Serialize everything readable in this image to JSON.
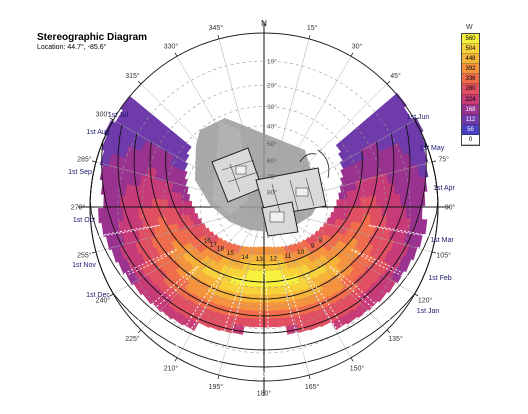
{
  "header": {
    "title": "Stereographic Diagram",
    "location": "Location: 44.7°, -85.6°"
  },
  "legend": {
    "unit": "W",
    "levels": [
      {
        "label": "560",
        "color": "#f7f03c"
      },
      {
        "label": "504",
        "color": "#f7d23a"
      },
      {
        "label": "448",
        "color": "#f6b33a"
      },
      {
        "label": "392",
        "color": "#f4923e"
      },
      {
        "label": "336",
        "color": "#ef6c4c"
      },
      {
        "label": "280",
        "color": "#e04f62"
      },
      {
        "label": "224",
        "color": "#c63b78"
      },
      {
        "label": "168",
        "color": "#9a3390"
      },
      {
        "label": "112",
        "color": "#6f3aaa"
      },
      {
        "label": "56",
        "color": "#4a40c2"
      },
      {
        "label": "0",
        "color": "#ffffff"
      }
    ]
  },
  "compass": {
    "north": "N",
    "azimuth_labels": [
      {
        "az": 15,
        "text": "15°"
      },
      {
        "az": 30,
        "text": "30°"
      },
      {
        "az": 45,
        "text": "45°"
      },
      {
        "az": 75,
        "text": "75°"
      },
      {
        "az": 90,
        "text": "90°"
      },
      {
        "az": 105,
        "text": "105°"
      },
      {
        "az": 120,
        "text": "120°"
      },
      {
        "az": 135,
        "text": "135°"
      },
      {
        "az": 150,
        "text": "150°"
      },
      {
        "az": 165,
        "text": "165°"
      },
      {
        "az": 180,
        "text": "180°"
      },
      {
        "az": 195,
        "text": "195°"
      },
      {
        "az": 210,
        "text": "210°"
      },
      {
        "az": 225,
        "text": "225°"
      },
      {
        "az": 240,
        "text": "240°"
      },
      {
        "az": 255,
        "text": "255°"
      },
      {
        "az": 270,
        "text": "270°"
      },
      {
        "az": 285,
        "text": "285°"
      },
      {
        "az": 300,
        "text": "300°"
      },
      {
        "az": 315,
        "text": "315°"
      },
      {
        "az": 330,
        "text": "330°"
      },
      {
        "az": 345,
        "text": "345°"
      }
    ],
    "altitude_labels": [
      "10°",
      "20°",
      "30°",
      "40°",
      "50°",
      "60°",
      "70°",
      "80°"
    ]
  },
  "sun_paths": {
    "date_labels_left": [
      "1st Jul",
      "1st Aug",
      "1st Sep",
      "1st Oct",
      "1st Nov",
      "1st Dec"
    ],
    "date_labels_right": [
      "1st Jun",
      "1st May",
      "1st Apr",
      "1st Mar",
      "1st Feb",
      "1st Jan"
    ],
    "hour_labels": [
      "16",
      "17",
      "18",
      "15",
      "14",
      "13",
      "12",
      "11",
      "10",
      "9",
      "8"
    ]
  },
  "plan": {
    "description_name": "building-floor-plan"
  }
}
